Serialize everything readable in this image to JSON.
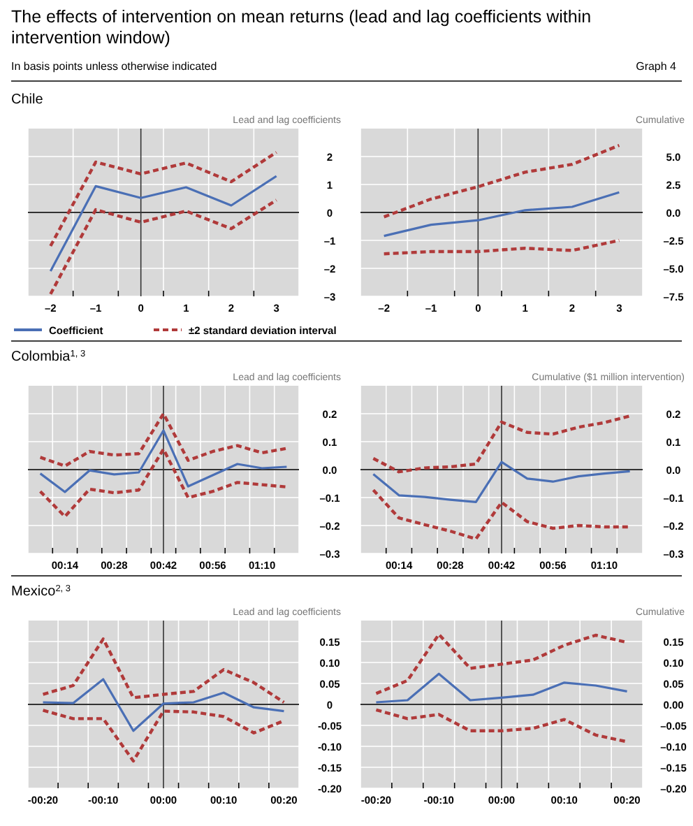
{
  "chart_data": [
    {
      "type": "other",
      "title": "The effects of intervention on mean returns (lead and lag coefficients within intervention window)",
      "subtitle": "In basis points unless otherwise indicated",
      "annotations": [
        "Graph 4"
      ]
    },
    {
      "type": "line",
      "title": "Chile",
      "ylabel": "Lead and lag coefficients",
      "categories": [
        "–2",
        "–1",
        "0",
        "1",
        "2",
        "3"
      ],
      "ylim": [
        -3,
        3
      ],
      "yticks": [
        {
          "value": -3,
          "label": "–3"
        },
        {
          "value": -2,
          "label": "–2"
        },
        {
          "value": -1,
          "label": "–1"
        },
        0,
        1,
        2
      ],
      "grid": true,
      "legend": "bottom",
      "ref_lines": [
        {
          "axis": "x",
          "value": "0",
          "color": "#333333"
        },
        {
          "axis": "y",
          "value": 0,
          "color": "#333333"
        }
      ],
      "series": [
        {
          "name": "Coefficient",
          "color": "#4a6fb5",
          "line_style": "solid",
          "values": [
            -2.1,
            0.94,
            0.52,
            0.9,
            0.25,
            1.3
          ]
        },
        {
          "name": "±2 standard deviation interval",
          "color": "#b03a3a",
          "line_style": "dashed",
          "values": [
            -1.2,
            1.8,
            1.38,
            1.77,
            1.1,
            2.15
          ]
        },
        {
          "color": "#b03a3a",
          "line_style": "dashed",
          "values": [
            -2.92,
            0.1,
            -0.35,
            0.05,
            -0.58,
            0.44
          ]
        }
      ]
    },
    {
      "type": "line",
      "ylabel": "Cumulative",
      "categories": [
        "–2",
        "–1",
        "0",
        "1",
        "2",
        "3"
      ],
      "ylim": [
        -7.5,
        7.5
      ],
      "yticks": [
        {
          "value": -7.5,
          "label": "–7.5"
        },
        {
          "value": -5,
          "label": "–5.0"
        },
        {
          "value": -2.5,
          "label": "–2.5"
        },
        {
          "value": 0,
          "label": "0.0"
        },
        2.5,
        {
          "value": 5,
          "label": "5.0"
        }
      ],
      "grid": true,
      "ref_lines": [
        {
          "axis": "x",
          "value": "0",
          "color": "#333333"
        },
        {
          "axis": "y",
          "value": 0,
          "color": "#333333"
        }
      ],
      "series": [
        {
          "color": "#4a6fb5",
          "line_style": "solid",
          "values": [
            -2.1,
            -1.1,
            -0.7,
            0.2,
            0.5,
            1.8
          ]
        },
        {
          "color": "#b03a3a",
          "line_style": "dashed",
          "values": [
            -0.4,
            1.2,
            2.3,
            3.6,
            4.3,
            6.0
          ]
        },
        {
          "color": "#b03a3a",
          "line_style": "dashed",
          "values": [
            -3.7,
            -3.5,
            -3.5,
            -3.2,
            -3.4,
            -2.5
          ]
        }
      ]
    },
    {
      "type": "line",
      "title": "Colombia$^{1, 3}$",
      "ylabel": "Lead and lag coefficients",
      "categories": [
        null,
        "00:14",
        null,
        "00:28",
        null,
        "00:42",
        null,
        "00:56",
        null,
        "01:10",
        null
      ],
      "ylim": [
        -0.3,
        0.3
      ],
      "yticks": [
        {
          "value": -0.3,
          "label": "–0.3"
        },
        {
          "value": -0.2,
          "label": "–0.2"
        },
        {
          "value": -0.1,
          "label": "–0.1"
        },
        {
          "value": 0,
          "label": "0.0"
        },
        0.1,
        0.2
      ],
      "grid": true,
      "ref_lines": [
        {
          "axis": "x",
          "value": "00:42",
          "color": "#333333"
        },
        {
          "axis": "y",
          "value": 0,
          "color": "#333333"
        }
      ],
      "series": [
        {
          "color": "#4a6fb5",
          "line_style": "solid",
          "values": [
            -0.014,
            -0.08,
            -0.003,
            -0.017,
            -0.01,
            0.14,
            -0.06,
            -0.02,
            0.02,
            0.005,
            0.01
          ]
        },
        {
          "color": "#b03a3a",
          "line_style": "dashed",
          "values": [
            0.044,
            0.013,
            0.065,
            0.052,
            0.057,
            0.2,
            0.033,
            0.065,
            0.086,
            0.06,
            0.076
          ]
        },
        {
          "color": "#b03a3a",
          "line_style": "dashed",
          "values": [
            -0.078,
            -0.168,
            -0.07,
            -0.083,
            -0.073,
            0.073,
            -0.1,
            -0.078,
            -0.046,
            -0.054,
            -0.062
          ]
        }
      ]
    },
    {
      "type": "line",
      "ylabel": "Cumulative ($1 million intervention)",
      "categories": [
        null,
        "00:14",
        null,
        "00:28",
        null,
        "00:42",
        null,
        "00:56",
        null,
        "01:10",
        null
      ],
      "ylim": [
        -0.3,
        0.3
      ],
      "yticks": [
        {
          "value": -0.3,
          "label": "–0.3"
        },
        {
          "value": -0.2,
          "label": "–0.2"
        },
        {
          "value": -0.1,
          "label": "–0.1"
        },
        {
          "value": 0,
          "label": "0.0"
        },
        0.1,
        0.2
      ],
      "grid": true,
      "ref_lines": [
        {
          "axis": "x",
          "value": "00:42",
          "color": "#333333"
        },
        {
          "axis": "y",
          "value": 0,
          "color": "#333333"
        }
      ],
      "series": [
        {
          "color": "#4a6fb5",
          "line_style": "solid",
          "values": [
            -0.016,
            -0.092,
            -0.098,
            -0.108,
            -0.116,
            0.027,
            -0.032,
            -0.043,
            -0.024,
            -0.014,
            -0.006
          ]
        },
        {
          "color": "#b03a3a",
          "line_style": "dashed",
          "values": [
            0.04,
            -0.008,
            0.006,
            0.01,
            0.02,
            0.17,
            0.133,
            0.127,
            0.152,
            0.168,
            0.192
          ]
        },
        {
          "color": "#b03a3a",
          "line_style": "dashed",
          "values": [
            -0.073,
            -0.173,
            -0.197,
            -0.22,
            -0.248,
            -0.117,
            -0.186,
            -0.21,
            -0.2,
            -0.205,
            -0.205
          ]
        }
      ]
    },
    {
      "type": "line",
      "title": "Mexico$^{2, 3}$",
      "ylabel": "Lead and lag coefficients",
      "categories": [
        "-00:20",
        null,
        "-00:10",
        null,
        "00:00",
        null,
        "00:10",
        null,
        "00:20"
      ],
      "ylim": [
        -0.2,
        0.2
      ],
      "yticks": [
        {
          "value": -0.2,
          "label": "-0.20"
        },
        {
          "value": -0.15,
          "label": "-0.15"
        },
        {
          "value": -0.1,
          "label": "-0.10"
        },
        {
          "value": -0.05,
          "label": "-0.05"
        },
        0,
        {
          "value": 0.05,
          "label": "0.05"
        },
        {
          "value": 0.1,
          "label": "0.10"
        },
        {
          "value": 0.15,
          "label": "0.15"
        }
      ],
      "grid": true,
      "ref_lines": [
        {
          "axis": "x",
          "value": "00:00",
          "color": "#333333"
        },
        {
          "axis": "y",
          "value": 0,
          "color": "#333333"
        }
      ],
      "series": [
        {
          "color": "#4a6fb5",
          "line_style": "solid",
          "values": [
            0.005,
            0.003,
            0.06,
            -0.063,
            0.002,
            0.005,
            0.028,
            -0.007,
            -0.016
          ]
        },
        {
          "color": "#b03a3a",
          "line_style": "dashed",
          "values": [
            0.024,
            0.045,
            0.156,
            0.016,
            0.024,
            0.031,
            0.083,
            0.052,
            0.005
          ]
        },
        {
          "color": "#b03a3a",
          "line_style": "dashed",
          "values": [
            -0.014,
            -0.034,
            -0.034,
            -0.135,
            -0.016,
            -0.018,
            -0.029,
            -0.068,
            -0.039
          ]
        }
      ]
    },
    {
      "type": "line",
      "ylabel": "Cumulative",
      "categories": [
        "-00:20",
        null,
        "-00:10",
        null,
        "00:00",
        null,
        "00:10",
        null,
        "00:20"
      ],
      "ylim": [
        -0.2,
        0.2
      ],
      "yticks": [
        {
          "value": -0.2,
          "label": "–0.20"
        },
        {
          "value": -0.15,
          "label": "–0.15"
        },
        {
          "value": -0.1,
          "label": "–0.10"
        },
        {
          "value": -0.05,
          "label": "–0.05"
        },
        {
          "value": 0,
          "label": "0.00"
        },
        {
          "value": 0.05,
          "label": "0.05"
        },
        {
          "value": 0.1,
          "label": "0.10"
        },
        {
          "value": 0.15,
          "label": "0.15"
        }
      ],
      "grid": true,
      "ref_lines": [
        {
          "axis": "x",
          "value": "00:00",
          "color": "#333333"
        },
        {
          "axis": "y",
          "value": 0,
          "color": "#333333"
        }
      ],
      "series": [
        {
          "color": "#4a6fb5",
          "line_style": "solid",
          "values": [
            0.005,
            0.01,
            0.073,
            0.01,
            0.016,
            0.023,
            0.052,
            0.045,
            0.031
          ]
        },
        {
          "color": "#b03a3a",
          "line_style": "dashed",
          "values": [
            0.026,
            0.057,
            0.167,
            0.086,
            0.096,
            0.106,
            0.141,
            0.165,
            0.148
          ]
        },
        {
          "color": "#b03a3a",
          "line_style": "dashed",
          "values": [
            -0.013,
            -0.034,
            -0.024,
            -0.063,
            -0.063,
            -0.057,
            -0.036,
            -0.073,
            -0.089
          ]
        }
      ]
    }
  ]
}
